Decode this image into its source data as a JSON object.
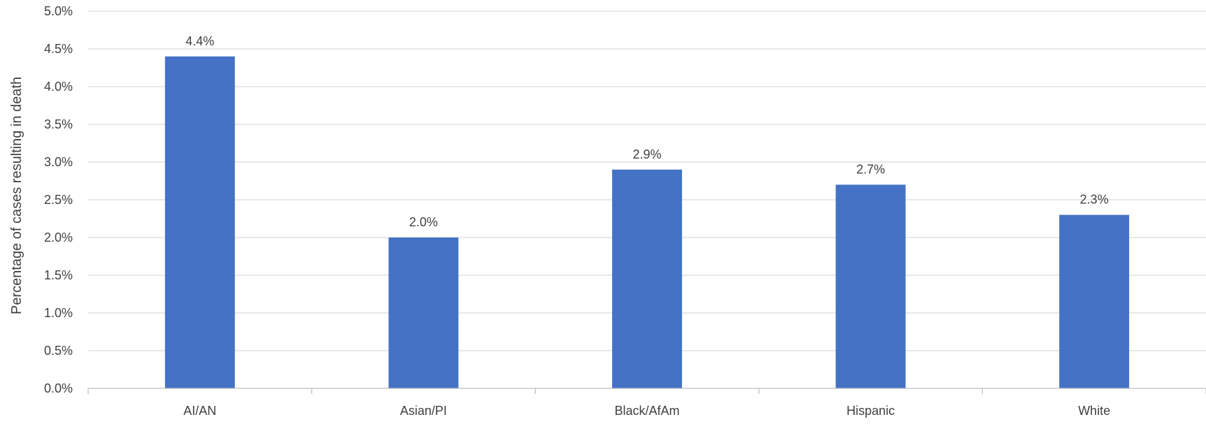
{
  "chart_data": {
    "type": "bar",
    "title": "",
    "xlabel": "",
    "ylabel": "Percentage of cases resulting in death",
    "categories": [
      "AI/AN",
      "Asian/PI",
      "Black/AfAm",
      "Hispanic",
      "White"
    ],
    "values": [
      4.4,
      2.0,
      2.9,
      2.7,
      2.3
    ],
    "data_labels": [
      "4.4%",
      "2.0%",
      "2.9%",
      "2.7%",
      "2.3%"
    ],
    "ylim": [
      0,
      5
    ],
    "yticks": [
      0,
      0.5,
      1,
      1.5,
      2,
      2.5,
      3,
      3.5,
      4,
      4.5,
      5
    ],
    "ytick_labels": [
      "0.0%",
      "0.5%",
      "1.0%",
      "1.5%",
      "2.0%",
      "2.5%",
      "3.0%",
      "3.5%",
      "4.0%",
      "4.5%",
      "5.0%"
    ],
    "grid": true,
    "legend": "none",
    "bar_color": "#4472c4",
    "grid_color": "#d9d9d9",
    "text_color": "#404040"
  }
}
